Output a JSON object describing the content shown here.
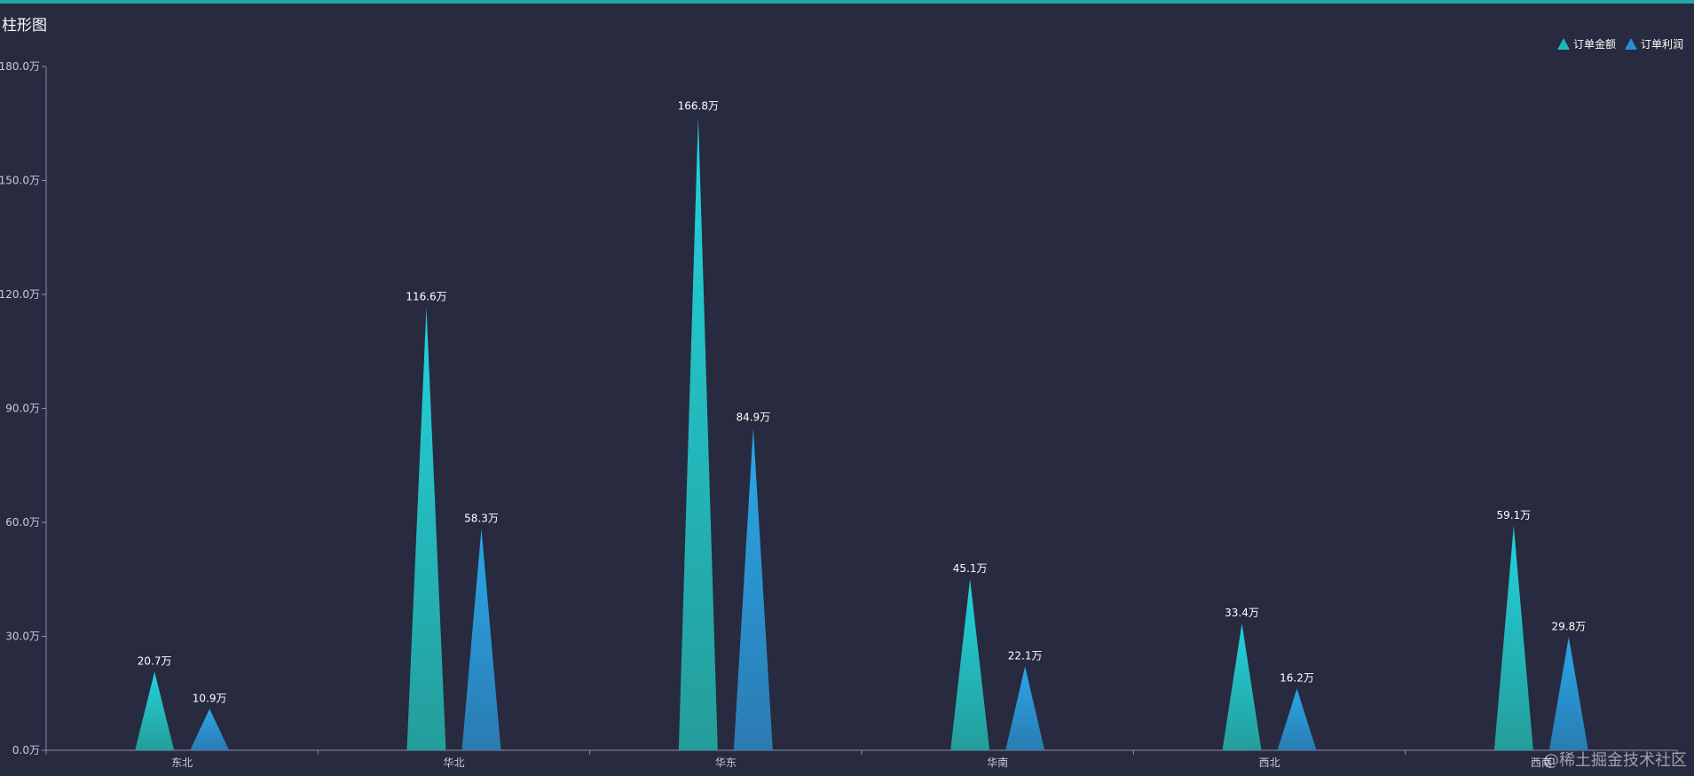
{
  "title": "柱形图",
  "watermark": "@稀土掘金技术社区",
  "colors": {
    "background": "#282a3f",
    "topbar": "#1fa9a5",
    "series_amount_top": "#22d3dc",
    "series_amount_bottom": "#249d9b",
    "series_profit_top": "#29a8e8",
    "series_profit_bottom": "#2b7bb2",
    "axis": "#8a8ea8",
    "label": "#ffffff"
  },
  "chart_data": {
    "type": "bar",
    "categories": [
      "东北",
      "华北",
      "华东",
      "华南",
      "西北",
      "西南"
    ],
    "series": [
      {
        "name": "订单金额",
        "values": [
          20.7,
          116.6,
          166.8,
          45.1,
          33.4,
          59.1
        ],
        "labels": [
          "20.7万",
          "116.6万",
          "166.8万",
          "45.1万",
          "33.4万",
          "59.1万"
        ]
      },
      {
        "name": "订单利润",
        "values": [
          10.9,
          58.3,
          84.9,
          22.1,
          16.2,
          29.8
        ],
        "labels": [
          "10.9万",
          "58.3万",
          "84.9万",
          "22.1万",
          "16.2万",
          "29.8万"
        ]
      }
    ],
    "ylim": [
      0,
      180
    ],
    "yticks": [
      0,
      30,
      60,
      90,
      120,
      150,
      180
    ],
    "ytick_labels": [
      "0.0万",
      "30.0万",
      "60.0万",
      "90.0万",
      "120.0万",
      "150.0万",
      "180.0万"
    ],
    "legend_position": "top-right",
    "grid": false
  }
}
